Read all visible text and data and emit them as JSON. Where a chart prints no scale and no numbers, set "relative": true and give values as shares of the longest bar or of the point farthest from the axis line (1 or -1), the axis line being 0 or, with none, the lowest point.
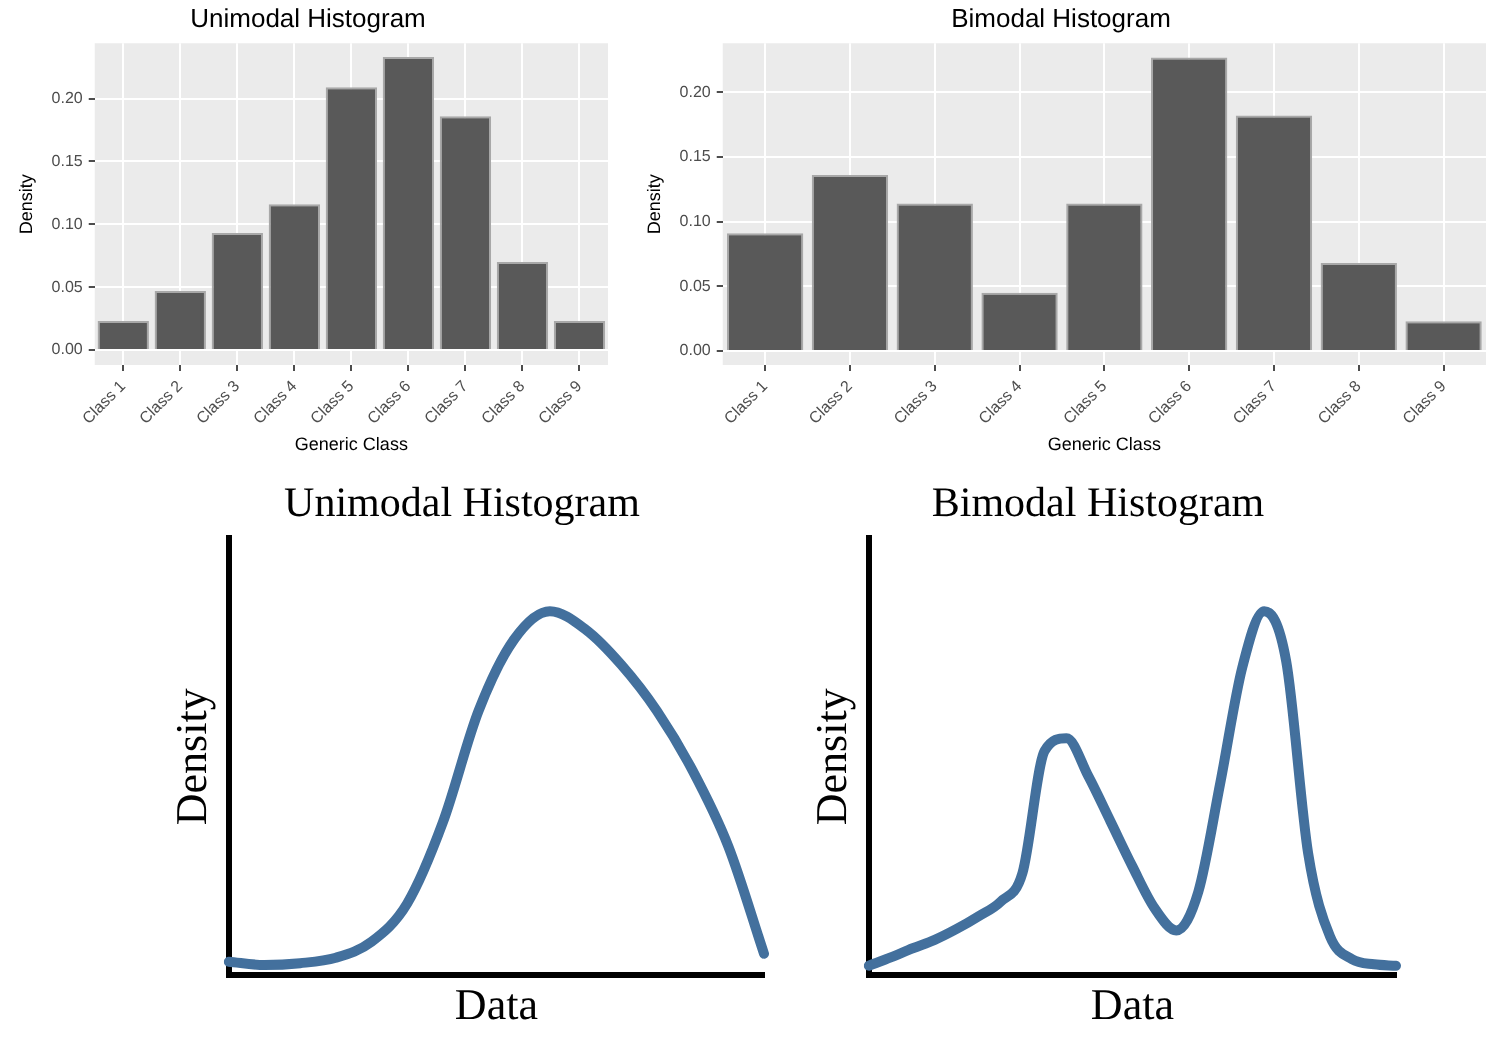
{
  "chart_data": [
    {
      "type": "bar",
      "title": "Unimodal Histogram",
      "xlabel": "Generic Class",
      "ylabel": "Density",
      "categories": [
        "Class 1",
        "Class 2",
        "Class 3",
        "Class 4",
        "Class 5",
        "Class 6",
        "Class 7",
        "Class 8",
        "Class 9"
      ],
      "values": [
        0.023,
        0.047,
        0.093,
        0.116,
        0.209,
        0.233,
        0.186,
        0.07,
        0.023
      ],
      "color": "#595959",
      "ylim": [
        -0.012,
        0.244
      ],
      "yticks": [
        {
          "value": 0,
          "label": "0.00"
        },
        {
          "value": 0.05,
          "label": "0.05"
        },
        {
          "value": 0.1,
          "label": "0.10"
        },
        {
          "value": 0.15,
          "label": "0.15"
        },
        {
          "value": 0.2,
          "label": "0.20"
        }
      ],
      "grid": true,
      "legend": false
    },
    {
      "type": "bar",
      "title": "Bimodal Histogram",
      "xlabel": "Generic Class",
      "ylabel": "Density",
      "categories": [
        "Class 1",
        "Class 2",
        "Class 3",
        "Class 4",
        "Class 5",
        "Class 6",
        "Class 7",
        "Class 8",
        "Class 9"
      ],
      "values": [
        0.091,
        0.136,
        0.114,
        0.045,
        0.114,
        0.227,
        0.182,
        0.068,
        0.023
      ],
      "color": "#595959",
      "ylim": [
        -0.011,
        0.238
      ],
      "yticks": [
        {
          "value": 0,
          "label": "0.00"
        },
        {
          "value": 0.05,
          "label": "0.05"
        },
        {
          "value": 0.1,
          "label": "0.10"
        },
        {
          "value": 0.15,
          "label": "0.15"
        },
        {
          "value": 0.2,
          "label": "0.20"
        }
      ],
      "grid": true,
      "legend": false
    },
    {
      "type": "line",
      "title": "Unimodal Histogram",
      "xlabel": "Data",
      "ylabel": "Density",
      "relative": true,
      "categories": [
        null,
        null,
        null,
        null,
        null,
        null,
        null,
        null,
        null,
        null,
        null,
        null,
        null,
        null,
        null,
        null
      ],
      "values": [
        0.037,
        0.028,
        0.033,
        0.048,
        0.092,
        0.197,
        0.42,
        0.726,
        0.923,
        1.0,
        0.95,
        0.853,
        0.726,
        0.562,
        0.354,
        0.059
      ],
      "color": "#43709d",
      "marker": "none",
      "grid": false,
      "legend": false
    },
    {
      "type": "line",
      "title": "Bimodal Histogram",
      "xlabel": "Data",
      "ylabel": "Density",
      "relative": true,
      "categories": [
        null,
        null,
        null,
        null,
        null,
        null,
        null,
        null,
        null,
        null,
        null,
        null,
        null,
        null,
        null,
        null,
        null,
        null,
        null,
        null,
        null,
        null,
        null,
        null,
        null
      ],
      "values": [
        0.026,
        0.049,
        0.074,
        0.097,
        0.127,
        0.162,
        0.202,
        0.282,
        0.616,
        0.651,
        0.546,
        0.423,
        0.299,
        0.185,
        0.123,
        0.229,
        0.528,
        0.845,
        1.0,
        0.863,
        0.335,
        0.106,
        0.044,
        0.03,
        0.026
      ],
      "color": "#43709d",
      "marker": "none",
      "grid": false,
      "legend": false
    }
  ]
}
